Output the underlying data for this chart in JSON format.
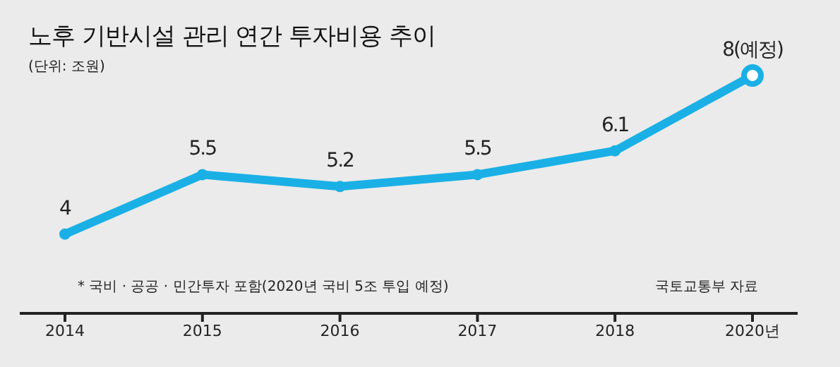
{
  "chart_data": {
    "type": "line",
    "title": "노후 기반시설 관리 연간 투자비용 추이",
    "subtitle": "(단위: 조원)",
    "categories": [
      "2014",
      "2015",
      "2016",
      "2017",
      "2018",
      "2020년"
    ],
    "series": [
      {
        "color": "#1ab0e6",
        "values": [
          4,
          5.5,
          5.2,
          5.5,
          6.1,
          8
        ],
        "value_labels": [
          "4",
          "5.5",
          "5.2",
          "5.5",
          "6.1",
          "8(예정)"
        ]
      }
    ],
    "tick_labels": "x",
    "marker": "circle",
    "line_style": "solid",
    "annotations": [
      "* 국비 · 공공 · 민간투자 포함(2020년 국비 5조 투입 예정)",
      "국토교통부 자료"
    ]
  }
}
